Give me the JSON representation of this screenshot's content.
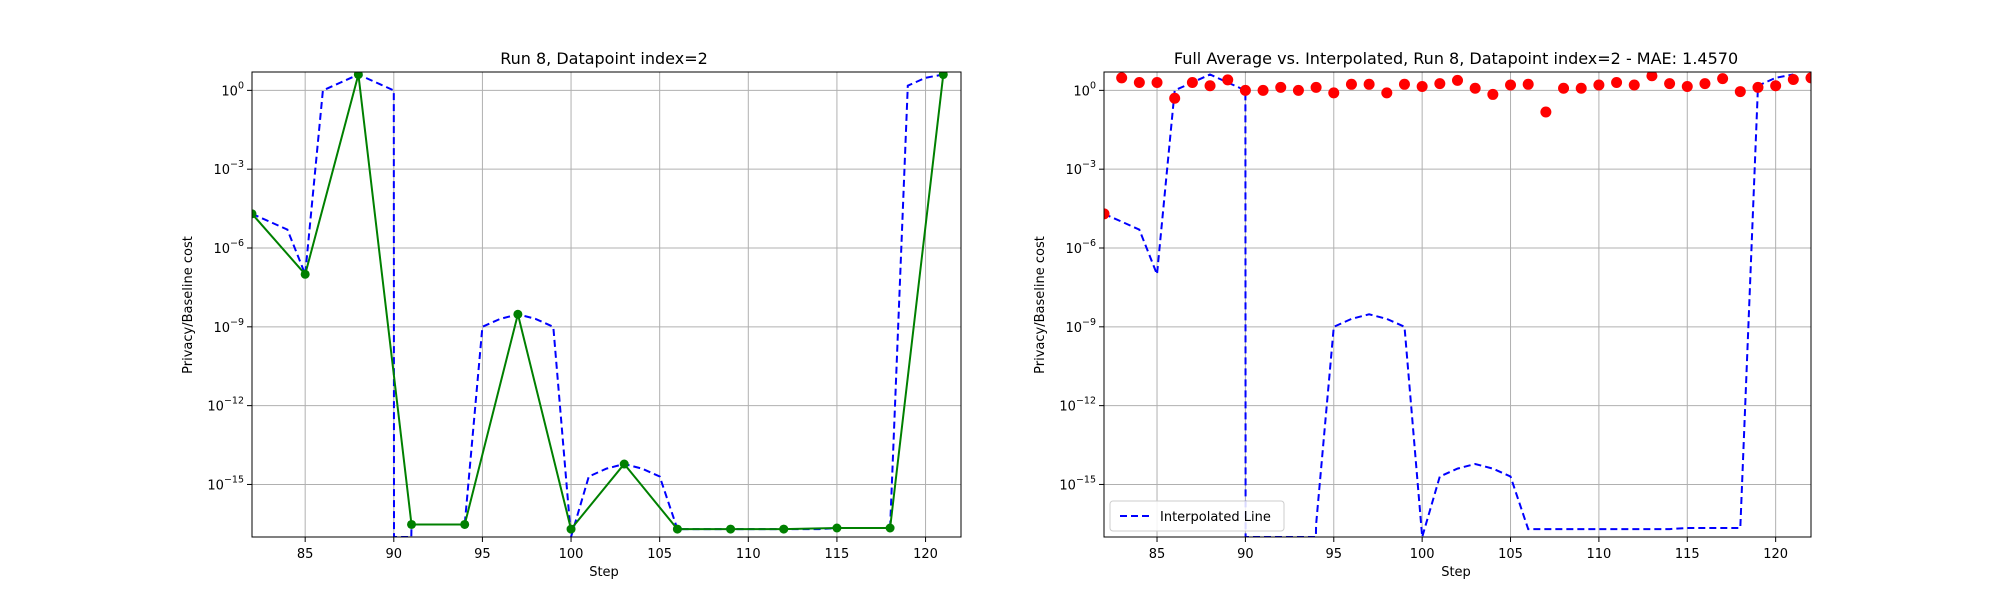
{
  "chart_data": [
    {
      "type": "line",
      "title": "Run 8, Datapoint index=2",
      "xlabel": "Step",
      "ylabel": "Privacy/Baseline cost",
      "yscale": "log",
      "xlim": [
        82,
        122
      ],
      "ylim": [
        1e-17,
        5
      ],
      "xticks": [
        85,
        90,
        95,
        100,
        105,
        110,
        115,
        120
      ],
      "yticks": [
        {
          "value": 1,
          "label": "10^0"
        },
        {
          "value": 0.001,
          "label": "10^-3"
        },
        {
          "value": 1e-06,
          "label": "10^-6"
        },
        {
          "value": 1e-09,
          "label": "10^-9"
        },
        {
          "value": 1e-12,
          "label": "10^-12"
        },
        {
          "value": 1e-15,
          "label": "10^-15"
        }
      ],
      "grid": true,
      "series": [
        {
          "style": "dashed",
          "color": "#0000ff",
          "x": [
            82,
            83,
            84,
            85,
            86,
            87,
            88,
            89,
            90,
            90.01,
            90.99,
            91,
            92,
            93,
            94,
            95,
            96,
            97,
            98,
            99,
            100,
            101,
            102,
            103,
            104,
            105,
            106,
            107,
            108,
            109,
            110,
            111,
            112,
            113,
            114,
            115,
            116,
            117,
            118,
            119,
            120,
            121
          ],
          "y": [
            2e-05,
            1e-05,
            5e-06,
            1e-07,
            1,
            2,
            4,
            2,
            1,
            1e-17,
            1e-17,
            3e-17,
            3e-17,
            3e-17,
            3e-17,
            1e-09,
            2e-09,
            3e-09,
            2e-09,
            1e-09,
            1e-17,
            2e-15,
            4e-15,
            6e-15,
            4e-15,
            2e-15,
            2e-17,
            2e-17,
            2e-17,
            2e-17,
            2e-17,
            2e-17,
            2e-17,
            2e-17,
            2e-17,
            2.2e-17,
            2.2e-17,
            2.2e-17,
            2.2e-17,
            1.5,
            3,
            4
          ]
        },
        {
          "style": "solid",
          "color": "#008000",
          "marker": "o",
          "x": [
            82,
            85,
            88,
            91,
            94,
            97,
            100,
            103,
            106,
            109,
            112,
            115,
            118,
            121
          ],
          "y": [
            2e-05,
            1e-07,
            4,
            3e-17,
            3e-17,
            3e-09,
            2e-17,
            6e-15,
            2e-17,
            2e-17,
            2e-17,
            2.2e-17,
            2.2e-17,
            4
          ]
        }
      ]
    },
    {
      "type": "scatter",
      "title": "Full Average vs. Interpolated, Run 8, Datapoint index=2 - MAE: 1.4570",
      "xlabel": "Step",
      "ylabel": "Privacy/Baseline cost",
      "yscale": "log",
      "xlim": [
        82,
        122
      ],
      "ylim": [
        1e-17,
        5
      ],
      "xticks": [
        85,
        90,
        95,
        100,
        105,
        110,
        115,
        120
      ],
      "yticks": [
        {
          "value": 1,
          "label": "10^0"
        },
        {
          "value": 0.001,
          "label": "10^-3"
        },
        {
          "value": 1e-06,
          "label": "10^-6"
        },
        {
          "value": 1e-09,
          "label": "10^-9"
        },
        {
          "value": 1e-12,
          "label": "10^-12"
        },
        {
          "value": 1e-15,
          "label": "10^-15"
        }
      ],
      "grid": true,
      "legend": {
        "position": "lower-left",
        "entries": [
          "Interpolated Line"
        ]
      },
      "series": [
        {
          "name": "Interpolated Line",
          "style": "dashed",
          "color": "#0000ff",
          "x": [
            82,
            83,
            84,
            85,
            86,
            87,
            88,
            89,
            90,
            90.01,
            93.99,
            94,
            95,
            96,
            97,
            98,
            99,
            100,
            101,
            102,
            103,
            104,
            105,
            106,
            107,
            108,
            109,
            110,
            111,
            112,
            113,
            114,
            115,
            116,
            117,
            118,
            119,
            120,
            121
          ],
          "y": [
            2e-05,
            1e-05,
            5e-06,
            1e-07,
            1,
            2,
            4,
            2,
            1,
            1e-17,
            1e-17,
            3e-17,
            1e-09,
            2e-09,
            3e-09,
            2e-09,
            1e-09,
            1e-17,
            2e-15,
            4e-15,
            6e-15,
            4e-15,
            2e-15,
            2e-17,
            2e-17,
            2e-17,
            2e-17,
            2e-17,
            2e-17,
            2e-17,
            2e-17,
            2e-17,
            2.2e-17,
            2.2e-17,
            2.2e-17,
            2.2e-17,
            1.5,
            3,
            4
          ]
        },
        {
          "style": "points",
          "color": "#ff0000",
          "marker": "o",
          "x": [
            82,
            83,
            84,
            85,
            86,
            87,
            88,
            89,
            90,
            91,
            92,
            93,
            94,
            95,
            96,
            97,
            98,
            99,
            100,
            101,
            102,
            103,
            104,
            105,
            106,
            107,
            108,
            109,
            110,
            111,
            112,
            113,
            114,
            115,
            116,
            117,
            118,
            119,
            120,
            121,
            122
          ],
          "y": [
            2e-05,
            3,
            2,
            2,
            0.5,
            2,
            1.5,
            2.5,
            1,
            1,
            1.3,
            1,
            1.3,
            0.8,
            1.7,
            1.7,
            0.8,
            1.7,
            1.4,
            1.8,
            2.4,
            1.2,
            0.7,
            1.6,
            1.7,
            0.15,
            1.2,
            1.2,
            1.6,
            2,
            1.6,
            3.6,
            1.8,
            1.4,
            1.8,
            2.8,
            0.9,
            1.3,
            1.5,
            2.6,
            3
          ]
        }
      ]
    }
  ]
}
